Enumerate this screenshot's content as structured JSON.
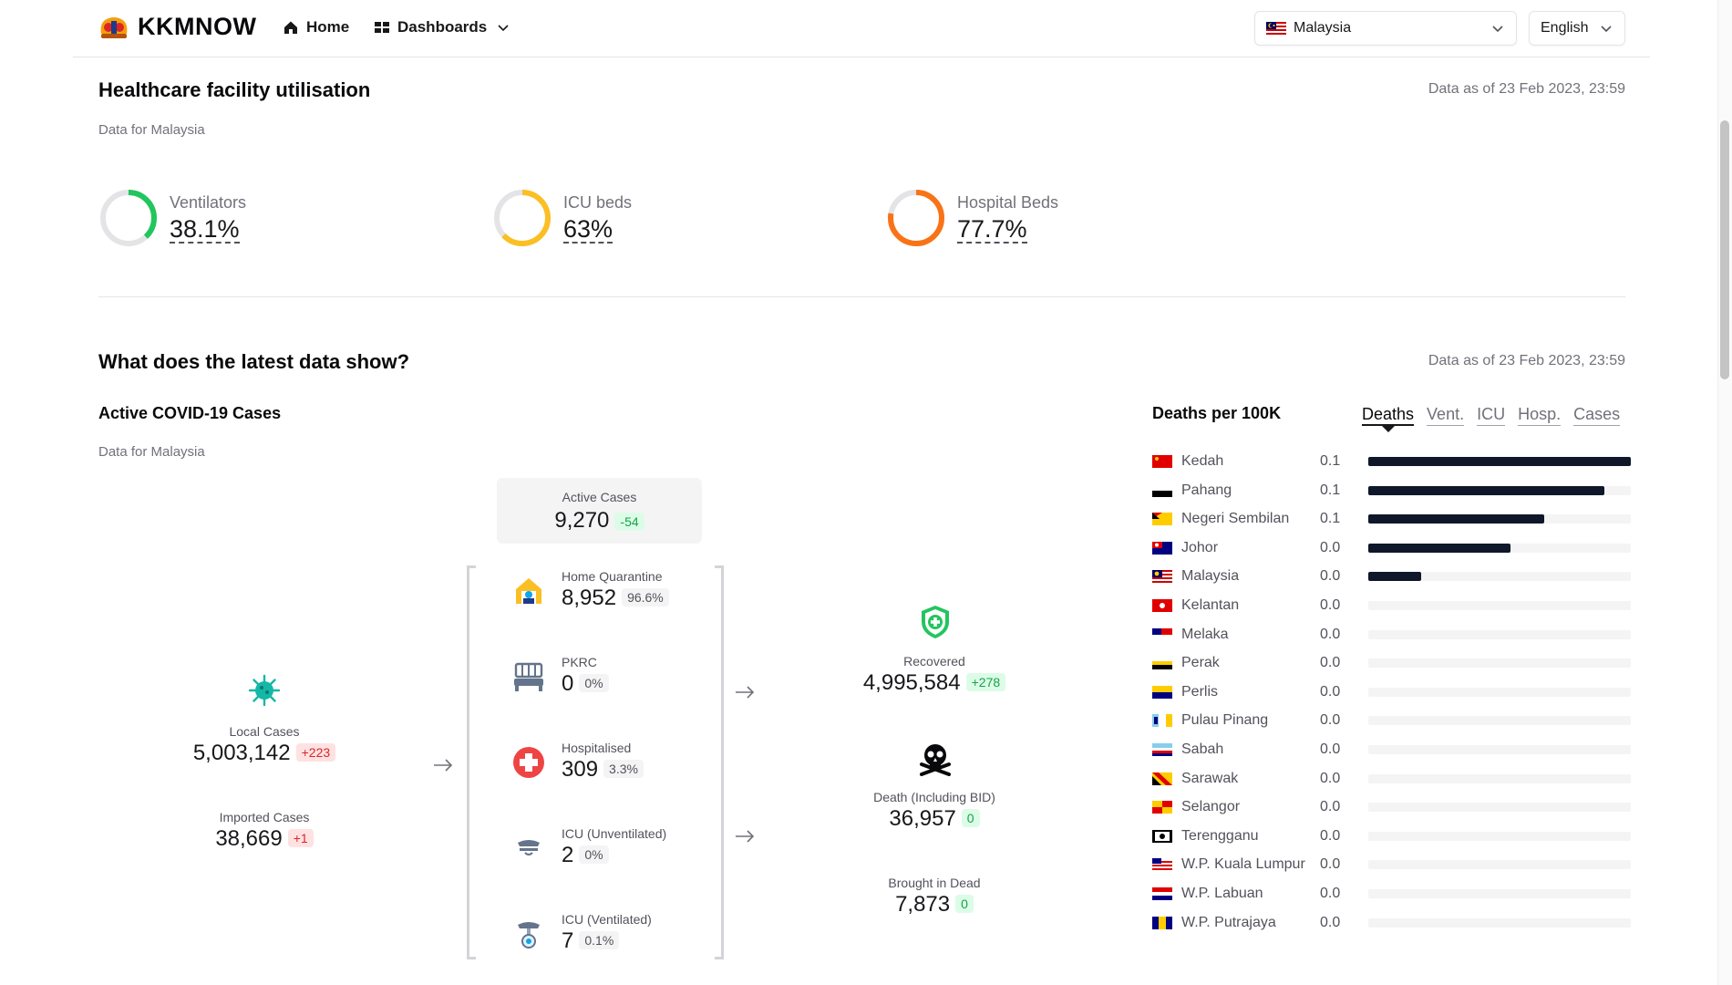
{
  "header": {
    "brand": "KKMNOW",
    "nav": {
      "home": "Home",
      "dashboards": "Dashboards"
    },
    "country_select": "Malaysia",
    "language_select": "English"
  },
  "utilisation": {
    "title": "Healthcare facility utilisation",
    "as_of": "Data as of 23 Feb 2023, 23:59",
    "subtitle": "Data for Malaysia",
    "gauges": [
      {
        "label": "Ventilators",
        "value": "38.1%",
        "fraction": 0.381,
        "color": "#22c55e"
      },
      {
        "label": "ICU beds",
        "value": "63%",
        "fraction": 0.63,
        "color": "#fbbf24"
      },
      {
        "label": "Hospital Beds",
        "value": "77.7%",
        "fraction": 0.777,
        "color": "#f97316"
      }
    ]
  },
  "latest": {
    "title": "What does the latest data show?",
    "as_of": "Data as of 23 Feb 2023, 23:59",
    "cases_title": "Active COVID-19 Cases",
    "cases_subtitle": "Data for Malaysia",
    "active": {
      "label": "Active Cases",
      "value": "9,270",
      "delta": "-54"
    },
    "local": {
      "label": "Local Cases",
      "value": "5,003,142",
      "delta": "+223"
    },
    "imported": {
      "label": "Imported Cases",
      "value": "38,669",
      "delta": "+1"
    },
    "home_quarantine": {
      "label": "Home Quarantine",
      "value": "8,952",
      "pct": "96.6%"
    },
    "pkrc": {
      "label": "PKRC",
      "value": "0",
      "pct": "0%"
    },
    "hospitalised": {
      "label": "Hospitalised",
      "value": "309",
      "pct": "3.3%"
    },
    "icu_unvent": {
      "label": "ICU (Unventilated)",
      "value": "2",
      "pct": "0%"
    },
    "icu_vent": {
      "label": "ICU (Ventilated)",
      "value": "7",
      "pct": "0.1%"
    },
    "recovered": {
      "label": "Recovered",
      "value": "4,995,584",
      "delta": "+278"
    },
    "death": {
      "label": "Death (Including BID)",
      "value": "36,957",
      "delta": "0"
    },
    "bid": {
      "label": "Brought in Dead",
      "value": "7,873",
      "delta": "0"
    }
  },
  "deaths_panel": {
    "title": "Deaths per 100K",
    "tabs": [
      "Deaths",
      "Vent.",
      "ICU",
      "Hosp.",
      "Cases"
    ],
    "active_tab": "Deaths"
  },
  "chart_data": {
    "type": "bar",
    "title": "Deaths per 100K",
    "orientation": "horizontal",
    "categories": [
      "Kedah",
      "Pahang",
      "Negeri Sembilan",
      "Johor",
      "Malaysia",
      "Kelantan",
      "Melaka",
      "Perak",
      "Perlis",
      "Pulau Pinang",
      "Sabah",
      "Sarawak",
      "Selangor",
      "Terengganu",
      "W.P. Kuala Lumpur",
      "W.P. Labuan",
      "W.P. Putrajaya"
    ],
    "value_labels": [
      "0.1",
      "0.1",
      "0.1",
      "0.0",
      "0.0",
      "0.0",
      "0.0",
      "0.0",
      "0.0",
      "0.0",
      "0.0",
      "0.0",
      "0.0",
      "0.0",
      "0.0",
      "0.0",
      "0.0"
    ],
    "relative_values": [
      1.0,
      0.9,
      0.67,
      0.54,
      0.2,
      0,
      0,
      0,
      0,
      0,
      0,
      0,
      0,
      0,
      0,
      0,
      0
    ],
    "bar_color": "#0f172a"
  }
}
